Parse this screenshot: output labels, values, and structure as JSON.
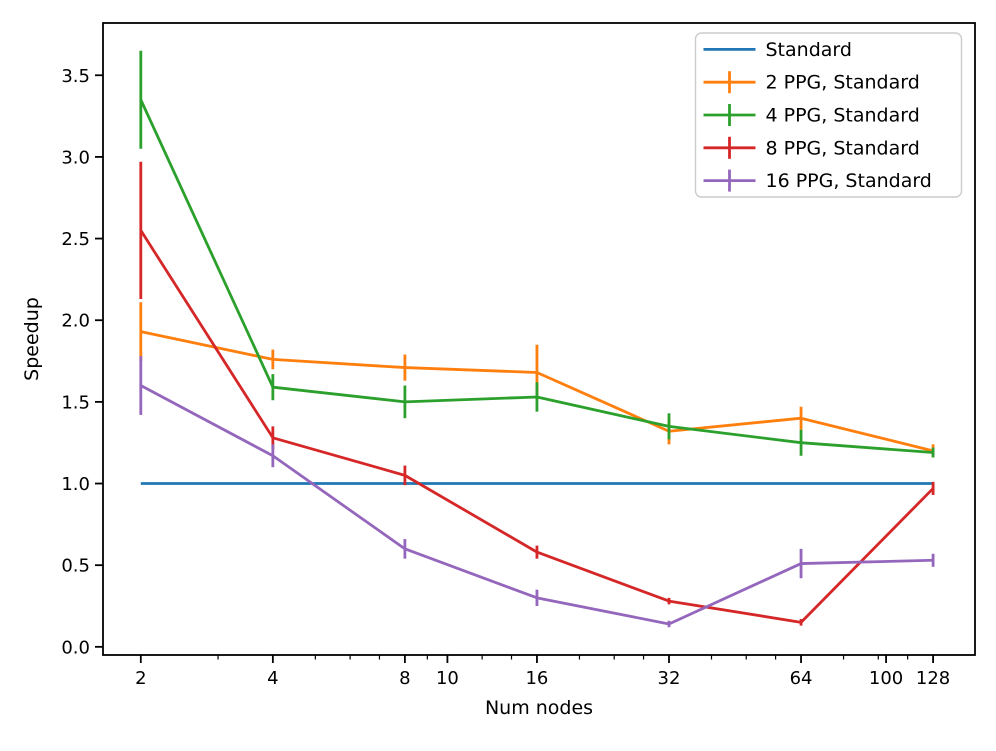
{
  "chart_data": {
    "type": "line",
    "title": "",
    "xlabel": "Num nodes",
    "ylabel": "Speedup",
    "x_scale": "log2",
    "grid": false,
    "legend_position": "upper right",
    "x": [
      2,
      4,
      8,
      16,
      32,
      64,
      128
    ],
    "xlim": [
      1.64,
      159.5
    ],
    "ylim": [
      -0.05,
      3.82
    ],
    "x_major_ticks": [
      2,
      4,
      8,
      10,
      16,
      32,
      64,
      100,
      128
    ],
    "x_minor_ticks": [
      3,
      5,
      6,
      7,
      9,
      12,
      14,
      20,
      24,
      28,
      40,
      48,
      56,
      80,
      96,
      112
    ],
    "y_ticks": [
      0.0,
      0.5,
      1.0,
      1.5,
      2.0,
      2.5,
      3.0,
      3.5
    ],
    "series": [
      {
        "name": "Standard",
        "color": "#1f77b4",
        "values": [
          1.0,
          1.0,
          1.0,
          1.0,
          1.0,
          1.0,
          1.0
        ],
        "yerr": null
      },
      {
        "name": "2 PPG, Standard",
        "color": "#ff7f0e",
        "values": [
          1.93,
          1.76,
          1.71,
          1.68,
          1.32,
          1.4,
          1.2
        ],
        "yerr": [
          0.18,
          0.06,
          0.08,
          0.17,
          0.08,
          0.07,
          0.04
        ]
      },
      {
        "name": "4 PPG, Standard",
        "color": "#2ca02c",
        "values": [
          3.35,
          1.59,
          1.5,
          1.53,
          1.35,
          1.25,
          1.19
        ],
        "yerr": [
          0.3,
          0.08,
          0.1,
          0.09,
          0.08,
          0.08,
          0.03
        ]
      },
      {
        "name": "8 PPG, Standard",
        "color": "#d62728",
        "values": [
          2.55,
          1.28,
          1.05,
          0.58,
          0.28,
          0.15,
          0.97
        ],
        "yerr": [
          0.42,
          0.07,
          0.06,
          0.04,
          0.02,
          0.02,
          0.04
        ]
      },
      {
        "name": "16 PPG, Standard",
        "color": "#9467bd",
        "values": [
          1.6,
          1.17,
          0.6,
          0.3,
          0.14,
          0.51,
          0.53
        ],
        "yerr": [
          0.18,
          0.07,
          0.06,
          0.05,
          0.02,
          0.09,
          0.04
        ]
      }
    ],
    "style": {
      "spine_color": "#000000",
      "legend_border_color": "#cccccc",
      "legend_background": "#ffffff"
    }
  }
}
